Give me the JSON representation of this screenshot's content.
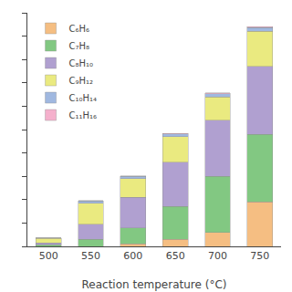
{
  "chart_data": {
    "type": "bar",
    "stacked": true,
    "xlabel": "Reaction temperature (°C)",
    "categories": [
      "500",
      "550",
      "600",
      "650",
      "700",
      "750"
    ],
    "series": [
      {
        "name": "C₆H₆",
        "color": "#F5BE82",
        "values": [
          0.0,
          0.0,
          0.5,
          1.5,
          3.0,
          9.5
        ]
      },
      {
        "name": "C₇H₈",
        "color": "#82C882",
        "values": [
          0.3,
          1.5,
          3.5,
          7.0,
          12.0,
          14.5
        ]
      },
      {
        "name": "C₈H₁₀",
        "color": "#B0A0D0",
        "values": [
          0.4,
          3.2,
          6.5,
          9.5,
          12.0,
          14.5
        ]
      },
      {
        "name": "C₉H₁₂",
        "color": "#EAEA80",
        "values": [
          1.0,
          4.5,
          4.0,
          5.5,
          5.0,
          7.5
        ]
      },
      {
        "name": "C₁₀H₁₄",
        "color": "#A0B8E0",
        "values": [
          0.12,
          0.5,
          0.5,
          0.6,
          0.7,
          0.8
        ]
      },
      {
        "name": "C₁₁H₁₆",
        "color": "#F5B0CC",
        "values": [
          0.03,
          0.08,
          0.08,
          0.1,
          0.15,
          0.2
        ]
      }
    ],
    "ylim": [
      0,
      50
    ],
    "yticks": [
      0,
      5,
      10,
      15,
      20,
      25,
      30,
      35,
      40,
      45,
      50
    ],
    "grid": false,
    "legend": "upper left",
    "tick_labels": "x"
  }
}
